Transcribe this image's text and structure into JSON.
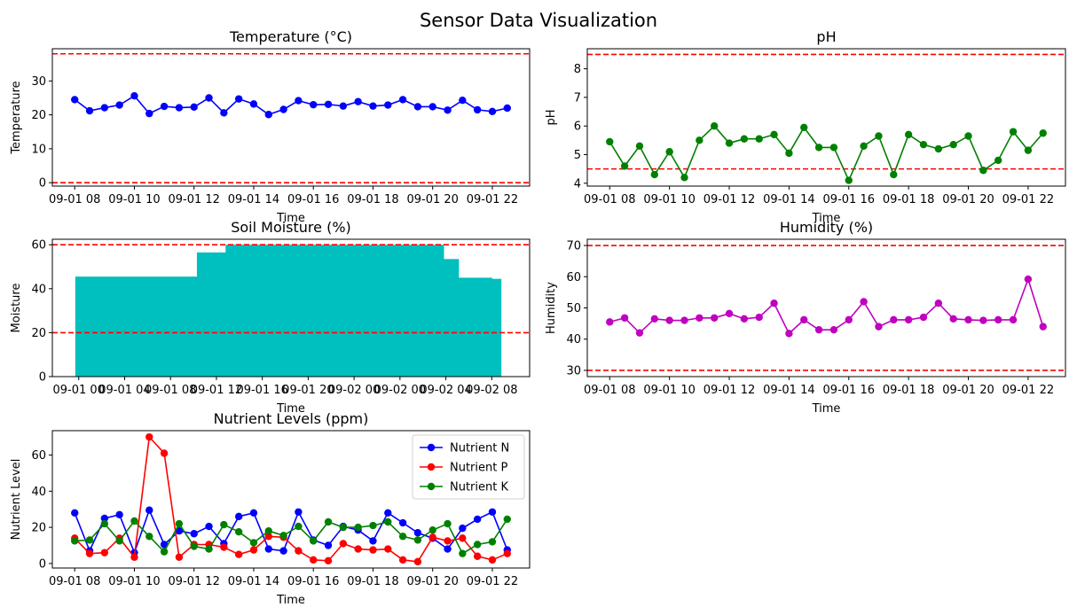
{
  "suptitle": "Sensor Data Visualization",
  "chart_data": [
    {
      "id": "temperature",
      "type": "line",
      "title": "Temperature (°C)",
      "xlabel": "Time",
      "ylabel": "Temperature",
      "color": "#0000ff",
      "threshold_color": "#ff0000",
      "thresholds": [
        38,
        0
      ],
      "ylim": [
        -1,
        39.5
      ],
      "yticks": [
        0,
        10,
        20,
        30
      ],
      "xlim": [
        -1.5,
        30.5
      ],
      "xticks": [
        0,
        4,
        8,
        12,
        16,
        20,
        24,
        28
      ],
      "xtick_labels": [
        "09-01 08",
        "09-01 10",
        "09-01 12",
        "09-01 14",
        "09-01 16",
        "09-01 18",
        "09-01 20",
        "09-01 22"
      ],
      "x": [
        0,
        1,
        2,
        3,
        4,
        5,
        6,
        7,
        8,
        9,
        10,
        11,
        12,
        13,
        14,
        15,
        16,
        17,
        18,
        19,
        20,
        21,
        22,
        23,
        24,
        25,
        26,
        27,
        28,
        29
      ],
      "values": [
        24.5,
        21.2,
        22.1,
        22.9,
        25.6,
        20.4,
        22.5,
        22.1,
        22.3,
        25.0,
        20.6,
        24.7,
        23.2,
        20.1,
        21.6,
        24.2,
        23.0,
        23.1,
        22.6,
        23.9,
        22.6,
        22.9,
        24.5,
        22.4,
        22.4,
        21.4,
        24.3,
        21.5,
        21.0,
        22.0
      ]
    },
    {
      "id": "ph",
      "type": "line",
      "title": "pH",
      "xlabel": "Time",
      "ylabel": "pH",
      "color": "#008000",
      "threshold_color": "#ff0000",
      "thresholds": [
        8.5,
        4.5
      ],
      "ylim": [
        3.9,
        8.7
      ],
      "yticks": [
        4,
        5,
        6,
        7,
        8
      ],
      "xlim": [
        -1.5,
        30.5
      ],
      "xticks": [
        0,
        4,
        8,
        12,
        16,
        20,
        24,
        28
      ],
      "xtick_labels": [
        "09-01 08",
        "09-01 10",
        "09-01 12",
        "09-01 14",
        "09-01 16",
        "09-01 18",
        "09-01 20",
        "09-01 22"
      ],
      "x": [
        0,
        1,
        2,
        3,
        4,
        5,
        6,
        7,
        8,
        9,
        10,
        11,
        12,
        13,
        14,
        15,
        16,
        17,
        18,
        19,
        20,
        21,
        22,
        23,
        24,
        25,
        26,
        27,
        28,
        29
      ],
      "values": [
        5.45,
        4.6,
        5.3,
        4.3,
        5.1,
        4.2,
        5.5,
        6.0,
        5.4,
        5.55,
        5.55,
        5.7,
        5.05,
        5.95,
        5.25,
        5.25,
        4.1,
        5.3,
        5.65,
        4.3,
        5.7,
        5.35,
        5.2,
        5.35,
        5.65,
        4.45,
        4.8,
        5.8,
        5.15,
        5.75
      ]
    },
    {
      "id": "soil_moisture",
      "type": "bar",
      "title": "Soil Moisture (%)",
      "xlabel": "Time",
      "ylabel": "Moisture",
      "color": "#00bfbf",
      "threshold_color": "#ff0000",
      "thresholds": [
        60,
        20
      ],
      "ylim": [
        0,
        62.5
      ],
      "yticks": [
        0,
        20,
        40,
        60
      ],
      "xlim": [
        -6.3,
        35.3
      ],
      "xticks": [
        -4,
        0,
        4,
        8,
        12,
        16,
        20,
        24,
        28,
        32
      ],
      "xtick_labels": [
        "09-01 00",
        "09-01 04",
        "09-01 08",
        "09-01 12",
        "09-01 16",
        "09-01 20",
        "09-02 00",
        "09-02 00",
        "09-02 04",
        "09-02 08"
      ],
      "steps": [
        {
          "x0": -4.3,
          "x1": 6.3,
          "value": 45.5
        },
        {
          "x0": 6.3,
          "x1": 8.8,
          "value": 56.5
        },
        {
          "x0": 8.8,
          "x1": 27.8,
          "value": 60.0
        },
        {
          "x0": 27.8,
          "x1": 29.1,
          "value": 53.5
        },
        {
          "x0": 29.1,
          "x1": 32.0,
          "value": 45.0
        },
        {
          "x0": 32.0,
          "x1": 32.8,
          "value": 44.5
        }
      ]
    },
    {
      "id": "humidity",
      "type": "line",
      "title": "Humidity (%)",
      "xlabel": "Time",
      "ylabel": "Humidity",
      "color": "#bf00bf",
      "threshold_color": "#ff0000",
      "thresholds": [
        70,
        30
      ],
      "ylim": [
        28,
        72
      ],
      "yticks": [
        30,
        40,
        50,
        60,
        70
      ],
      "xlim": [
        -1.5,
        30.5
      ],
      "xticks": [
        0,
        4,
        8,
        12,
        16,
        20,
        24,
        28
      ],
      "xtick_labels": [
        "09-01 08",
        "09-01 10",
        "09-01 12",
        "09-01 14",
        "09-01 16",
        "09-01 18",
        "09-01 20",
        "09-01 22"
      ],
      "x": [
        0,
        1,
        2,
        3,
        4,
        5,
        6,
        7,
        8,
        9,
        10,
        11,
        12,
        13,
        14,
        15,
        16,
        17,
        18,
        19,
        20,
        21,
        22,
        23,
        24,
        25,
        26,
        27,
        28,
        29
      ],
      "values": [
        45.5,
        46.8,
        42.0,
        46.5,
        46.0,
        46.0,
        46.8,
        46.8,
        48.2,
        46.5,
        47.0,
        51.5,
        41.8,
        46.2,
        43.0,
        43.0,
        46.2,
        52.0,
        44.0,
        46.2,
        46.2,
        47.0,
        51.5,
        46.5,
        46.2,
        46.0,
        46.2,
        46.2,
        59.2,
        44.0
      ]
    },
    {
      "id": "nutrients",
      "type": "line",
      "title": "Nutrient Levels (ppm)",
      "xlabel": "Time",
      "ylabel": "Nutrient Level",
      "ylim": [
        -2.5,
        73.5
      ],
      "yticks": [
        0,
        20,
        40,
        60
      ],
      "xlim": [
        -1.5,
        30.5
      ],
      "xticks": [
        0,
        4,
        8,
        12,
        16,
        20,
        24,
        28
      ],
      "xtick_labels": [
        "09-01 08",
        "09-01 10",
        "09-01 12",
        "09-01 14",
        "09-01 16",
        "09-01 18",
        "09-01 20",
        "09-01 22"
      ],
      "x": [
        0,
        1,
        2,
        3,
        4,
        5,
        6,
        7,
        8,
        9,
        10,
        11,
        12,
        13,
        14,
        15,
        16,
        17,
        18,
        19,
        20,
        21,
        22,
        23,
        24,
        25,
        26,
        27,
        28,
        29
      ],
      "legend_position": "upper right",
      "series": [
        {
          "name": "Nutrient N",
          "color": "#0000ff",
          "values": [
            28,
            7,
            25,
            27,
            6,
            29.5,
            10.5,
            18,
            16.5,
            20.5,
            11,
            26,
            28,
            8,
            7,
            28.5,
            13,
            10,
            20.5,
            18.5,
            12.5,
            28,
            22.5,
            17,
            14,
            8,
            19.5,
            24.5,
            28.5,
            7.5
          ]
        },
        {
          "name": "Nutrient P",
          "color": "#ff0000",
          "values": [
            14,
            5.5,
            6,
            14,
            3.5,
            70,
            61,
            3.5,
            10.5,
            10.5,
            9,
            5,
            7.5,
            15,
            14.5,
            7,
            2,
            1.5,
            11,
            8,
            7.5,
            8,
            2,
            1,
            14.5,
            12.5,
            14,
            4,
            2,
            5.5
          ]
        },
        {
          "name": "Nutrient K",
          "color": "#008000",
          "values": [
            12.5,
            13,
            22,
            12.5,
            23.5,
            15,
            6.5,
            22,
            9.5,
            8,
            21.5,
            17.5,
            11.5,
            18,
            15.5,
            20.5,
            12.5,
            23,
            20,
            20,
            21,
            23,
            15,
            13,
            18.5,
            22,
            5.5,
            10.5,
            12,
            24.5
          ]
        }
      ]
    }
  ]
}
